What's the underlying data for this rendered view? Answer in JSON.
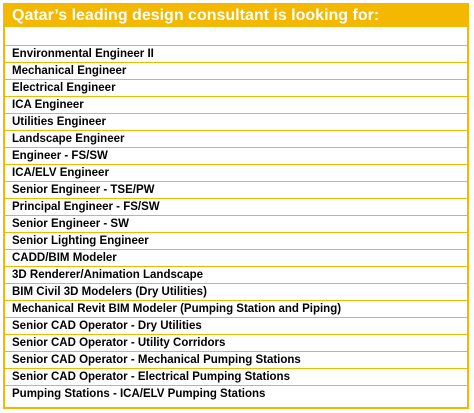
{
  "header": {
    "title": "Qatar’s leading design consultant is looking for:"
  },
  "positions": [
    "Environmental Engineer II",
    "Mechanical Engineer",
    "Electrical Engineer",
    "ICA Engineer",
    "Utilities Engineer",
    "Landscape Engineer",
    "Engineer - FS/SW",
    "ICA/ELV Engineer",
    "Senior Engineer - TSE/PW",
    "Principal Engineer - FS/SW",
    "Senior Engineer - SW",
    "Senior Lighting Engineer",
    "CADD/BIM Modeler",
    "3D Renderer/Animation Landscape",
    "BIM Civil 3D Modelers (Dry Utilities)",
    "Mechanical Revit BIM Modeler (Pumping Station and Piping)",
    "Senior CAD Operator - Dry Utilities",
    "Senior CAD Operator - Utility Corridors",
    "Senior CAD Operator - Mechanical Pumping Stations",
    "Senior CAD Operator - Electrical Pumping Stations",
    "Pumping Stations - ICA/ELV Pumping Stations"
  ],
  "colors": {
    "accent": "#f5b800",
    "text": "#000000",
    "header_text": "#ffffff"
  }
}
